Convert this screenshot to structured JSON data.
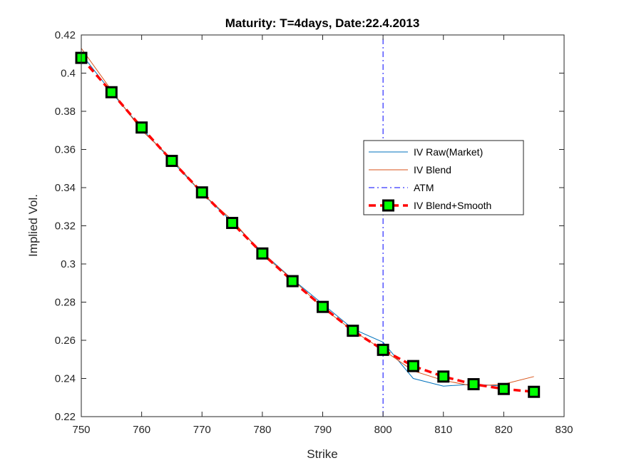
{
  "chart_data": {
    "type": "line",
    "title": "Maturity: T=4days, Date:22.4.2013",
    "xlabel": "Strike",
    "ylabel": "Implied Vol.",
    "xlim": [
      750,
      830
    ],
    "ylim": [
      0.22,
      0.42
    ],
    "xticks": [
      750,
      760,
      770,
      780,
      790,
      800,
      810,
      820,
      830
    ],
    "yticks": [
      0.22,
      0.24,
      0.26,
      0.28,
      0.3,
      0.32,
      0.34,
      0.36,
      0.38,
      0.4,
      0.42
    ],
    "grid": false,
    "legend_position": "right",
    "series": [
      {
        "name": "IV Raw(Market)",
        "color": "#0072BD",
        "style": "solid",
        "x": [
          750,
          755,
          760,
          765,
          770,
          775,
          780,
          785,
          790,
          795,
          800,
          805,
          810,
          815,
          820
        ],
        "y": [
          0.41,
          0.39,
          0.371,
          0.354,
          0.337,
          0.322,
          0.306,
          0.292,
          0.279,
          0.266,
          0.259,
          0.24,
          0.236,
          0.237,
          0.236
        ]
      },
      {
        "name": "IV Blend",
        "color": "#D95319",
        "style": "solid",
        "x": [
          750,
          755,
          760,
          765,
          770,
          775,
          780,
          785,
          790,
          795,
          800,
          805,
          810,
          815,
          820,
          825
        ],
        "y": [
          0.413,
          0.391,
          0.37,
          0.355,
          0.337,
          0.323,
          0.305,
          0.292,
          0.277,
          0.265,
          0.255,
          0.244,
          0.239,
          0.236,
          0.237,
          0.241
        ]
      },
      {
        "name": "ATM",
        "color": "#0000FF",
        "style": "dashdot",
        "x": [
          800,
          800
        ],
        "y": [
          0.22,
          0.42
        ]
      },
      {
        "name": "IV Blend+Smooth",
        "color": "#FF0000",
        "style": "dashed",
        "marker": "square",
        "marker_face": "#00FF00",
        "marker_edge": "#000000",
        "x": [
          750,
          755,
          760,
          765,
          770,
          775,
          780,
          785,
          790,
          795,
          800,
          805,
          810,
          815,
          820,
          825
        ],
        "y": [
          0.408,
          0.39,
          0.3715,
          0.354,
          0.3375,
          0.3215,
          0.3055,
          0.291,
          0.2775,
          0.265,
          0.255,
          0.2465,
          0.241,
          0.237,
          0.2345,
          0.233
        ]
      }
    ]
  }
}
